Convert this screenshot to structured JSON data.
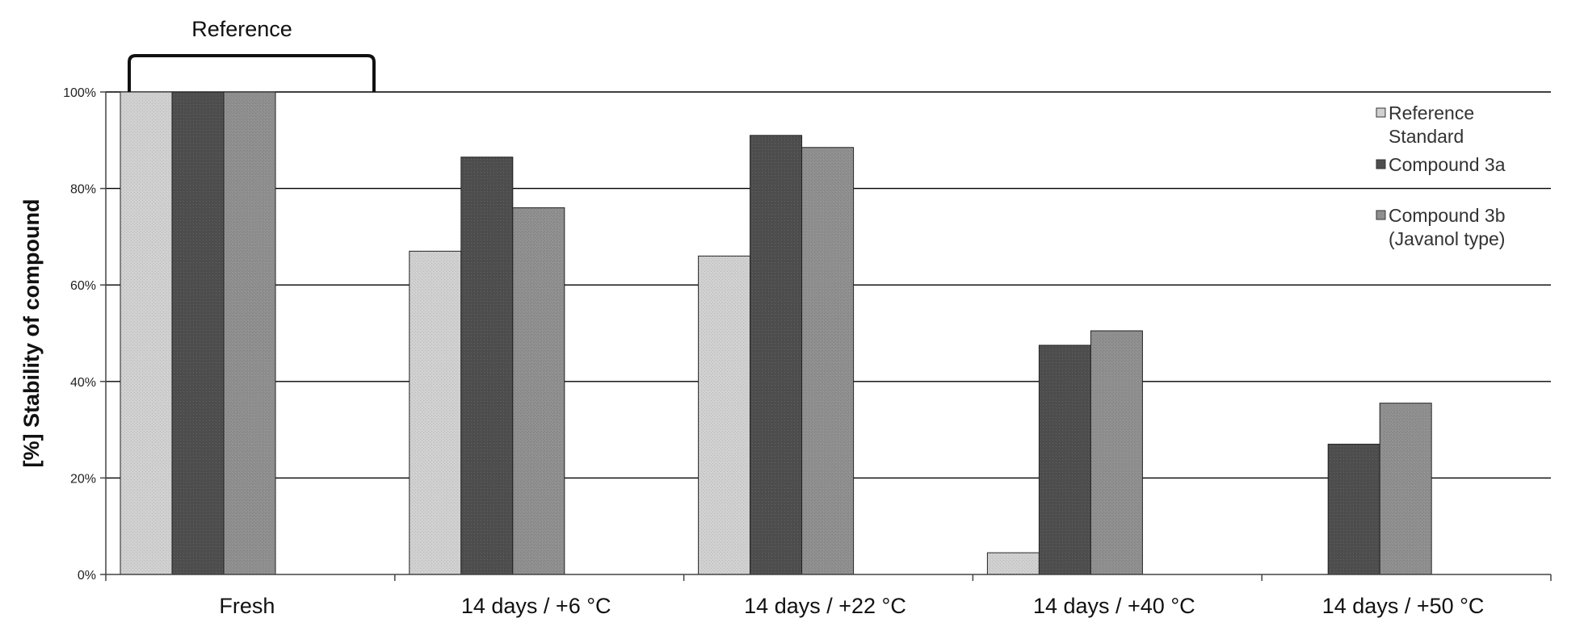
{
  "chart_data": {
    "type": "bar",
    "categories": [
      "Fresh",
      "14 days / +6 °C",
      "14 days / +22 °C",
      "14 days / +40 °C",
      "14 days / +50 °C"
    ],
    "series": [
      {
        "name_lines": [
          "Reference",
          "Standard"
        ],
        "color": "#d0d0d0",
        "values": [
          100,
          67,
          66,
          4.5,
          0
        ]
      },
      {
        "name_lines": [
          "Compound 3a"
        ],
        "color": "#4e4e4e",
        "values": [
          100,
          86.5,
          91,
          47.5,
          27
        ]
      },
      {
        "name_lines": [
          "Compound 3b",
          "(Javanol type)"
        ],
        "color": "#8f8f8f",
        "values": [
          100,
          76,
          88.5,
          50.5,
          35.5
        ]
      }
    ],
    "ylabel": "[%] Stability of compound",
    "ylim": [
      0,
      100
    ],
    "yticks": [
      0,
      20,
      40,
      60,
      80,
      100
    ],
    "ytick_labels": [
      "0%",
      "20%",
      "40%",
      "60%",
      "80%",
      "100%"
    ],
    "grid": true,
    "legend_position": "top-right",
    "annotation": {
      "label": "Reference",
      "category": "Fresh"
    }
  }
}
